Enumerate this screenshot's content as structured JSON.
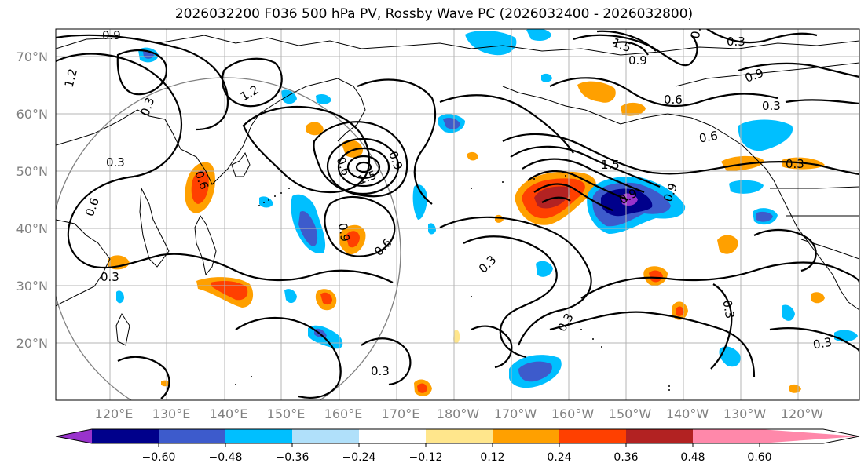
{
  "title": "2026032200 F036 500 hPa PV, Rossby Wave PC (2026032400 - 2026032800)",
  "latitude_labels": [
    "70°N",
    "60°N",
    "50°N",
    "40°N",
    "30°N",
    "20°N"
  ],
  "longitude_labels": [
    "120°E",
    "130°E",
    "140°E",
    "150°E",
    "160°E",
    "170°E",
    "180°W",
    "170°W",
    "160°W",
    "150°W",
    "140°W",
    "130°W",
    "120°W"
  ],
  "colorbar": {
    "ticks": [
      "−0.60",
      "−0.48",
      "−0.36",
      "−0.24",
      "−0.12",
      "0.12",
      "0.24",
      "0.36",
      "0.48",
      "0.60"
    ],
    "colors": [
      "#9933cc",
      "#00008b",
      "#3d5bcc",
      "#00bfff",
      "#b0e0fa",
      "#ffffff",
      "#ffe68c",
      "#ffa000",
      "#ff4000",
      "#b22222",
      "#ff88aa"
    ]
  },
  "contour_labels": [
    "0.9",
    "1.2",
    "1.2",
    "0.3",
    "0.3",
    "0.6",
    "0.6",
    "1.5",
    "0.9",
    "0.9",
    "0.6",
    "0.3",
    "1.5",
    "0.9",
    "0.3",
    "0.6",
    "0.6",
    "0.9",
    "0.6",
    "0.3",
    "0.9",
    "0.3",
    "0.3",
    "0.3",
    "0.3",
    "0.3",
    "0.3",
    "0.9",
    "1.5",
    "0.6"
  ],
  "chart_data": {
    "type": "map",
    "title": "2026032200 F036 500 hPa PV, Rossby Wave PC (2026032400 - 2026032800)",
    "lat_range": [
      10,
      75
    ],
    "lon_range": [
      113,
      246
    ],
    "shading_levels": [
      -0.6,
      -0.48,
      -0.36,
      -0.24,
      -0.12,
      0.12,
      0.24,
      0.36,
      0.48,
      0.6
    ],
    "contour_levels": [
      0.3,
      0.6,
      0.9,
      1.2,
      1.5
    ]
  }
}
